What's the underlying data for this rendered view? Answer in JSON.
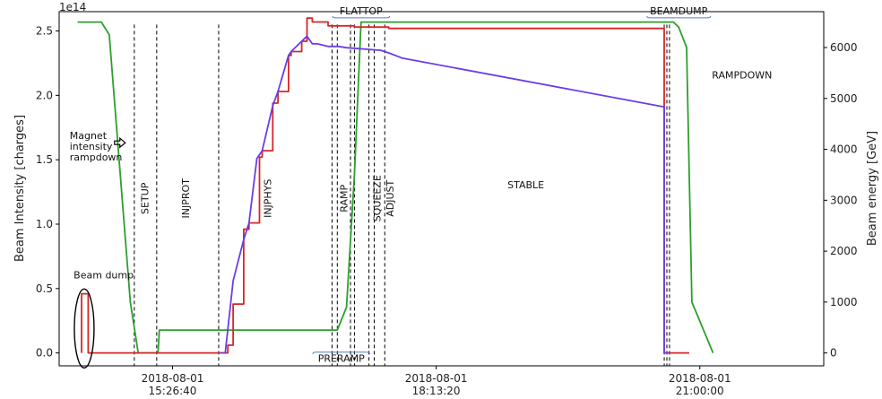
{
  "chart_data": {
    "type": "line",
    "ylabel": "Beam Intensity [charges]",
    "ylabel_right": "Beam energy [GeV]",
    "offset_label": "1e14",
    "x_ticks": [
      {
        "line1": "2018-08-01",
        "line2": "15:26:40",
        "x": 56800
      },
      {
        "line1": "2018-08-01",
        "line2": "18:13:20",
        "x": 66800
      },
      {
        "line1": "2018-08-01",
        "line2": "21:00:00",
        "x": 76800
      }
    ],
    "xlim": [
      52500,
      81500
    ],
    "ylim": [
      -0.1,
      2.65
    ],
    "ylim_right": [
      -253,
      6705
    ],
    "y_ticks_left": [
      0.0,
      0.5,
      1.0,
      1.5,
      2.0,
      2.5
    ],
    "y_tick_labels_left": [
      "0.0",
      "0.5",
      "1.0",
      "1.5",
      "2.0",
      "2.5"
    ],
    "y_ticks_right": [
      0,
      1000,
      2000,
      3000,
      4000,
      5000,
      6000
    ],
    "y_tick_labels_right": [
      "0",
      "1000",
      "2000",
      "3000",
      "4000",
      "5000",
      "6000"
    ],
    "phase_lines_x": [
      55350,
      56200,
      58550,
      62850,
      63050,
      63550,
      63700,
      64250,
      64450,
      64850,
      75450,
      75550,
      75650
    ],
    "phase_labels": [
      {
        "text": "SETUP",
        "x": 55750,
        "y": 1.2,
        "box": false,
        "rotate": true
      },
      {
        "text": "INJPROT",
        "x": 57300,
        "y": 1.2,
        "box": false,
        "rotate": true
      },
      {
        "text": "INJPHYS",
        "x": 60400,
        "y": 1.2,
        "box": false,
        "rotate": true
      },
      {
        "text": "RAMP",
        "x": 63300,
        "y": 1.2,
        "box": false,
        "rotate": true
      },
      {
        "text": "SQUEEZE",
        "x": 64550,
        "y": 1.2,
        "box": false,
        "rotate": true
      },
      {
        "text": "ADJUST",
        "x": 65050,
        "y": 1.2,
        "box": false,
        "rotate": true
      },
      {
        "text": "STABLE",
        "x": 70200,
        "y": 1.28,
        "box": false,
        "rotate": false
      },
      {
        "text": "RAMPDOWN",
        "x": 78400,
        "y": 2.13,
        "box": false,
        "rotate": false
      },
      {
        "text": "FLATTOP",
        "x": 63950,
        "y": 2.63,
        "box": "top",
        "rotate": false
      },
      {
        "text": "BEAMDUMP",
        "x": 76000,
        "y": 2.63,
        "box": "top",
        "rotate": false
      },
      {
        "text": "PRERAMP",
        "x": 63200,
        "y": -0.07,
        "box": "bottom",
        "rotate": false
      }
    ],
    "annotations": [
      {
        "lines": [
          "Magnet",
          "intensity",
          "rampdown"
        ],
        "x": 52900,
        "y": 1.66,
        "arrow": true
      },
      {
        "lines": [
          "Beam dump"
        ],
        "x": 53050,
        "y": 0.58,
        "arrow": false
      }
    ],
    "series": [
      {
        "axis": "right",
        "color": "#2ca02c",
        "x": [
          53200,
          54100,
          54400,
          55200,
          55500,
          56250,
          56300,
          62900,
          63050,
          63400,
          63700,
          63950,
          75600,
          75800,
          76000,
          76300,
          76500,
          77300
        ],
        "y": [
          6500,
          6500,
          6250,
          1000,
          0,
          0,
          450,
          450,
          450,
          900,
          3500,
          6500,
          6500,
          6500,
          6400,
          6000,
          1000,
          0
        ]
      },
      {
        "axis": "left",
        "color": "#d62728",
        "x": [
          53350,
          53350,
          53600,
          53600,
          58600,
          58900,
          59100,
          59500,
          59700,
          60100,
          60200,
          60600,
          60800,
          61200,
          61300,
          61700,
          61900,
          62100,
          62300,
          62700,
          63100,
          63400,
          63700,
          65000,
          75450,
          75450,
          76400
        ],
        "y": [
          0.0,
          0.46,
          0.46,
          0.0,
          0.0,
          0.06,
          0.38,
          0.96,
          1.01,
          1.52,
          1.57,
          1.94,
          2.03,
          2.31,
          2.34,
          2.42,
          2.6,
          2.57,
          2.57,
          2.54,
          2.54,
          2.54,
          2.53,
          2.52,
          2.12,
          0.0,
          0.0
        ],
        "steps": true
      },
      {
        "axis": "left",
        "color": "#6a3de8",
        "x": [
          58600,
          58800,
          59100,
          59500,
          59700,
          60000,
          60200,
          60600,
          60800,
          61200,
          61300,
          61700,
          61900,
          62100,
          62300,
          62700,
          63100,
          63400,
          64700,
          65000,
          65500,
          75450,
          75450,
          75600
        ],
        "y": [
          0.0,
          0.0,
          0.56,
          0.88,
          1.01,
          1.51,
          1.57,
          1.92,
          2.03,
          2.31,
          2.34,
          2.42,
          2.46,
          2.4,
          2.4,
          2.38,
          2.38,
          2.37,
          2.35,
          2.33,
          2.29,
          1.91,
          0.0,
          0.0
        ],
        "steps": false
      }
    ]
  }
}
